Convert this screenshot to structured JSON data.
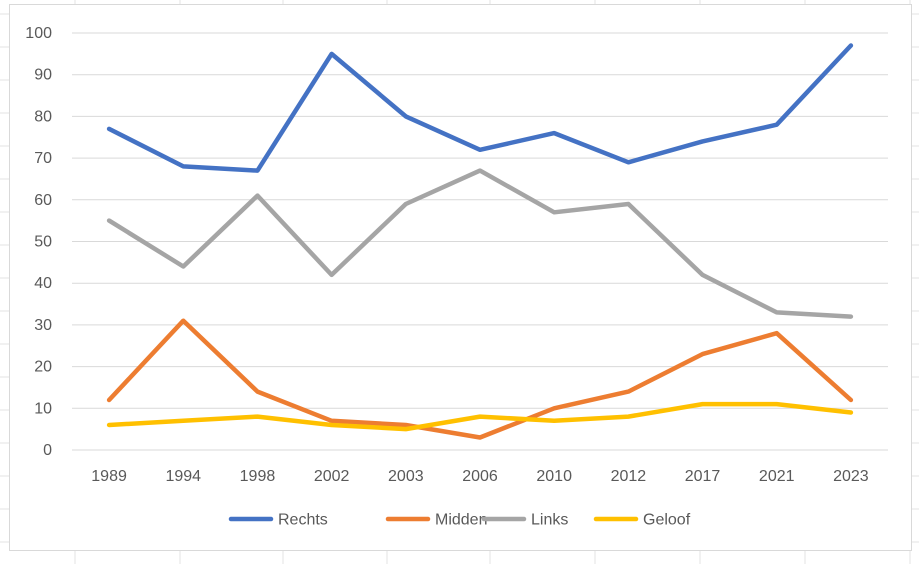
{
  "chart_data": {
    "type": "line",
    "title": "",
    "xlabel": "",
    "ylabel": "",
    "categories": [
      "1989",
      "1994",
      "1998",
      "2002",
      "2003",
      "2006",
      "2010",
      "2012",
      "2017",
      "2021",
      "2023"
    ],
    "ylim": [
      0,
      100
    ],
    "yticks": [
      "0",
      "10",
      "20",
      "30",
      "40",
      "50",
      "60",
      "70",
      "80",
      "90",
      "100"
    ],
    "grid": true,
    "legend": "bottom",
    "series": [
      {
        "name": "Rechts",
        "color": "#4472C4",
        "values": [
          77,
          68,
          67,
          95,
          80,
          72,
          76,
          69,
          74,
          78,
          97
        ]
      },
      {
        "name": "Midden",
        "color": "#ED7D31",
        "values": [
          12,
          31,
          14,
          7,
          6,
          3,
          10,
          14,
          23,
          28,
          12
        ]
      },
      {
        "name": "Links",
        "color": "#A5A5A5",
        "values": [
          55,
          44,
          61,
          42,
          59,
          67,
          57,
          59,
          42,
          33,
          32
        ]
      },
      {
        "name": "Geloof",
        "color": "#FFC000",
        "values": [
          6,
          7,
          8,
          6,
          5,
          8,
          7,
          8,
          11,
          11,
          9
        ]
      }
    ]
  }
}
